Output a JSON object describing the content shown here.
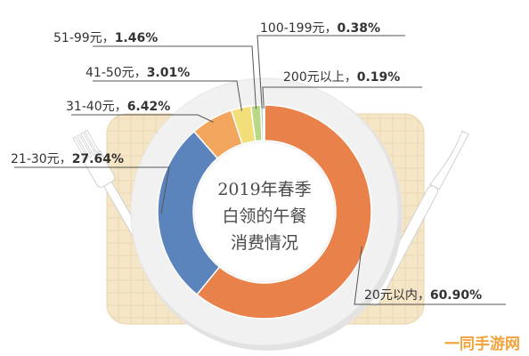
{
  "chart_data": {
    "type": "pie",
    "variant": "donut",
    "title_lines": [
      "2019年春季",
      "白领的午餐",
      "消费情况"
    ],
    "slices": [
      {
        "category": "20元以内",
        "value": 60.9,
        "display": "60.90%",
        "color": "#e8814a"
      },
      {
        "category": "21-30元",
        "value": 27.64,
        "display": "27.64%",
        "color": "#5b84bd"
      },
      {
        "category": "31-40元",
        "value": 6.42,
        "display": "6.42%",
        "color": "#f2a55c"
      },
      {
        "category": "41-50元",
        "value": 3.01,
        "display": "3.01%",
        "color": "#f3df7a"
      },
      {
        "category": "51-99元",
        "value": 1.46,
        "display": "1.46%",
        "color": "#b7d884"
      },
      {
        "category": "100-199元",
        "value": 0.38,
        "display": "0.38%",
        "color": "#9fd3c4"
      },
      {
        "category": "200元以上",
        "value": 0.19,
        "display": "0.19%",
        "color": "#e8814a"
      }
    ],
    "labels": {
      "20元以内": {
        "name": "20元以内，",
        "pct": "60.90%"
      },
      "21-30元": {
        "name": "21-30元，",
        "pct": "27.64%"
      },
      "31-40元": {
        "name": "31-40元，",
        "pct": "6.42%"
      },
      "41-50元": {
        "name": "41-50元，",
        "pct": "3.01%"
      },
      "51-99元": {
        "name": "51-99元，",
        "pct": "1.46%"
      },
      "100-199元": {
        "name": "100-199元，",
        "pct": "0.38%"
      },
      "200元以上": {
        "name": "200元以上，",
        "pct": "0.19%"
      }
    },
    "legend": "none",
    "grid": false
  },
  "watermark": {
    "text": "一同手游网"
  },
  "colors": {
    "placemat": "#f5e6c7",
    "placemat_grid": "#e7d3ab",
    "plate_rim": "#f1f1f1",
    "plate_shadow": "#e2e2e2",
    "inner_plate": "#ffffff",
    "leader_line": "#555555",
    "cutlery": "#ffffff",
    "cutlery_outline": "#d0d0d0"
  }
}
